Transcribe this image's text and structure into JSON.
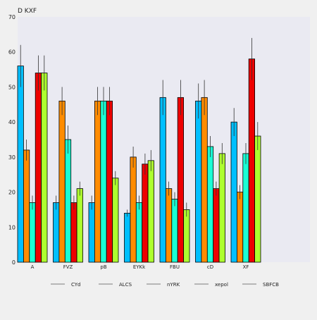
{
  "chart_data": {
    "type": "bar",
    "title": "D KXF",
    "xlabel": "",
    "ylabel": "",
    "ylim": [
      0,
      70
    ],
    "yticks": [
      0,
      10,
      20,
      30,
      40,
      50,
      60,
      70
    ],
    "grid": false,
    "legend_position": "bottom",
    "categories": [
      "A",
      "FVZ",
      "pB",
      "EYKk",
      "FBU",
      "cD",
      "XF"
    ],
    "series": [
      {
        "name": "CYd",
        "color": "#00bfff",
        "values": [
          56,
          17,
          17,
          14,
          47,
          46,
          40
        ],
        "errors": [
          6,
          2,
          2,
          1,
          5,
          5,
          4
        ]
      },
      {
        "name": "ALCS",
        "color": "#ff8c00",
        "values": [
          32,
          46,
          46,
          30,
          21,
          47,
          20
        ],
        "errors": [
          3,
          4,
          4,
          3,
          2,
          5,
          2
        ]
      },
      {
        "name": "nYRK",
        "color": "#1affd5",
        "values": [
          17,
          35,
          46,
          17,
          18,
          33,
          31
        ],
        "errors": [
          2,
          4,
          4,
          2,
          2,
          3,
          3
        ]
      },
      {
        "name": "xepol",
        "color": "#ee0000",
        "values": [
          54,
          17,
          46,
          28,
          47,
          21,
          58
        ],
        "errors": [
          5,
          2,
          4,
          3,
          5,
          2,
          6
        ]
      },
      {
        "name": "SBFCB",
        "color": "#adff2f",
        "values": [
          54,
          21,
          24,
          29,
          15,
          31,
          36
        ],
        "errors": [
          5,
          2,
          2,
          3,
          2,
          3,
          4
        ]
      }
    ]
  }
}
